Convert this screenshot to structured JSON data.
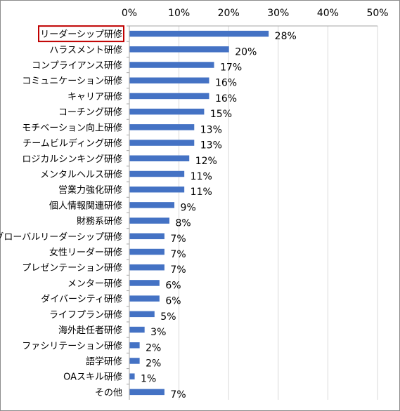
{
  "chart_data": {
    "type": "bar",
    "orientation": "horizontal",
    "categories": [
      "リーダーシップ研修",
      "ハラスメント研修",
      "コンプライアンス研修",
      "コミュニケーション研修",
      "キャリア研修",
      "コーチング研修",
      "モチベーション向上研修",
      "チームビルディング研修",
      "ロジカルシンキング研修",
      "メンタルヘルス研修",
      "営業力強化研修",
      "個人情報関連研修",
      "財務系研修",
      "グローバルリーダーシップ研修",
      "女性リーダー研修",
      "プレゼンテーション研修",
      "メンター研修",
      "ダイバーシティ研修",
      "ライフプラン研修",
      "海外赴任者研修",
      "ファシリテーション研修",
      "語学研修",
      "OAスキル研修",
      "その他"
    ],
    "values": [
      28,
      20,
      17,
      16,
      16,
      15,
      13,
      13,
      12,
      11,
      11,
      9,
      8,
      7,
      7,
      7,
      6,
      6,
      5,
      3,
      2,
      2,
      1,
      7
    ],
    "data_labels": [
      "28%",
      "20%",
      "17%",
      "16%",
      "16%",
      "15%",
      "13%",
      "13%",
      "12%",
      "11%",
      "11%",
      "9%",
      "8%",
      "7%",
      "7%",
      "7%",
      "6%",
      "6%",
      "5%",
      "3%",
      "2%",
      "2%",
      "1%",
      "7%"
    ],
    "xlim": [
      0,
      50
    ],
    "x_ticks": [
      "0%",
      "10%",
      "20%",
      "30%",
      "40%",
      "50%"
    ],
    "x_tick_values": [
      0,
      10,
      20,
      30,
      40,
      50
    ],
    "x_axis_position": "top",
    "gridlines": true,
    "bar_color": "#4472c4",
    "highlighted_category": "リーダーシップ研修",
    "highlight_color": "#c00000",
    "title": "",
    "xlabel": "",
    "ylabel": ""
  }
}
